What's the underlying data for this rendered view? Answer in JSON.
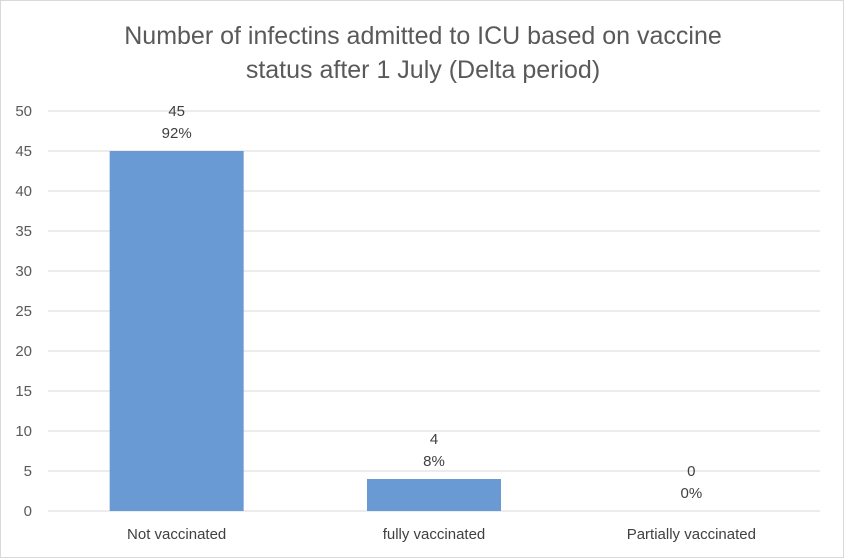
{
  "chart_data": {
    "type": "bar",
    "title_line1": "Number of infectins admitted to ICU based on vaccine",
    "title_line2": "status after 1 July (Delta period)",
    "categories": [
      "Not vaccinated",
      "fully vaccinated",
      "Partially vaccinated"
    ],
    "values": [
      45,
      4,
      0
    ],
    "percent_labels": [
      "92%",
      "8%",
      "0%"
    ],
    "ylim": [
      0,
      50
    ],
    "yticks": [
      0,
      5,
      10,
      15,
      20,
      25,
      30,
      35,
      40,
      45,
      50
    ],
    "grid": true,
    "bar_color": "#6a9ad3",
    "gridline_color": "#d9d9d9"
  }
}
